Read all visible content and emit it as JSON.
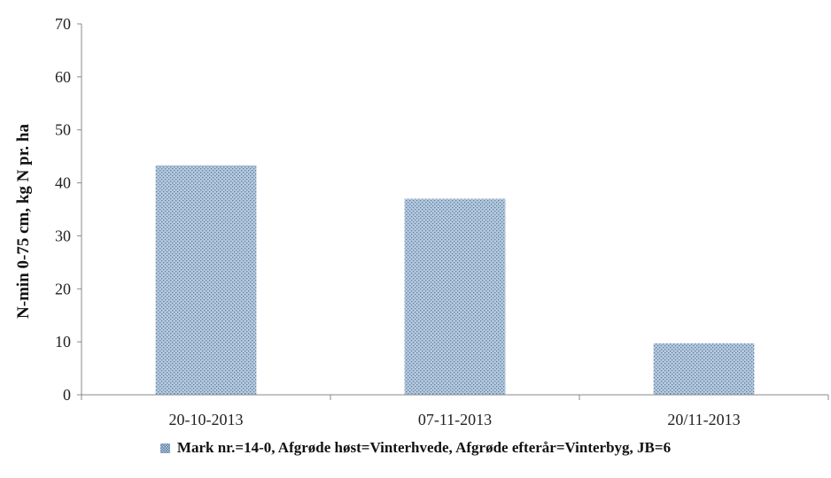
{
  "chart_data": {
    "type": "bar",
    "title": "",
    "xlabel": "",
    "ylabel": "N-min 0-75 cm, kg N pr. ha",
    "categories": [
      "20-10-2013",
      "07-11-2013",
      "20/11-2013"
    ],
    "series": [
      {
        "name": "Mark nr.=14-0, Afgrøde høst=Vinterhvede, Afgrøde efterår=Vinterbyg, JB=6",
        "values": [
          43.3,
          37.0,
          9.7
        ]
      }
    ],
    "ylim": [
      0,
      70
    ],
    "yticks": [
      "0",
      "10",
      "20",
      "30",
      "40",
      "50",
      "60",
      "70"
    ],
    "grid": false,
    "legend_position": "bottom"
  },
  "colors": {
    "bar_fill": "#b6c9dc",
    "bar_hatch": "#5a7fa6",
    "axis": "#888888"
  }
}
